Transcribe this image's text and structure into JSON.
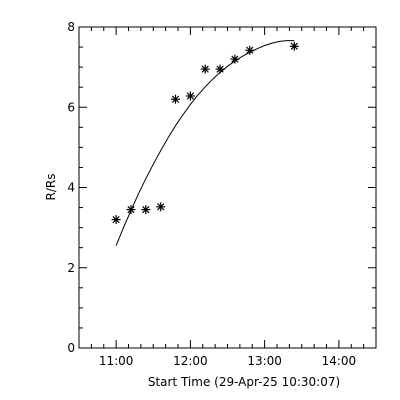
{
  "chart_data": {
    "type": "scatter",
    "xlabel": "Start Time (29-Apr-25 10:30:07)",
    "ylabel": "R/Rs",
    "xlim": [
      "10:30",
      "14:30"
    ],
    "ylim": [
      0,
      8
    ],
    "x_ticks": [
      "11:00",
      "12:00",
      "13:00",
      "14:00"
    ],
    "y_ticks": [
      0,
      2,
      4,
      6,
      8
    ],
    "grid": false,
    "series": [
      {
        "marker": "asterisk",
        "points": [
          {
            "x": "11:00",
            "y": 3.2
          },
          {
            "x": "11:12",
            "y": 3.45
          },
          {
            "x": "11:24",
            "y": 3.45
          },
          {
            "x": "11:36",
            "y": 3.52
          },
          {
            "x": "11:48",
            "y": 6.2
          },
          {
            "x": "12:00",
            "y": 6.28
          },
          {
            "x": "12:12",
            "y": 6.95
          },
          {
            "x": "12:24",
            "y": 6.95
          },
          {
            "x": "12:36",
            "y": 7.2
          },
          {
            "x": "12:48",
            "y": 7.42
          },
          {
            "x": "13:24",
            "y": 7.52
          }
        ]
      },
      {
        "style": "line",
        "points": [
          {
            "x": "11:00",
            "y": 2.55
          },
          {
            "x": "11:06",
            "y": 3.0
          },
          {
            "x": "11:12",
            "y": 3.43
          },
          {
            "x": "11:18",
            "y": 3.84
          },
          {
            "x": "11:24",
            "y": 4.22
          },
          {
            "x": "11:30",
            "y": 4.58
          },
          {
            "x": "11:36",
            "y": 4.92
          },
          {
            "x": "11:42",
            "y": 5.24
          },
          {
            "x": "11:48",
            "y": 5.54
          },
          {
            "x": "11:54",
            "y": 5.81
          },
          {
            "x": "12:00",
            "y": 6.07
          },
          {
            "x": "12:06",
            "y": 6.3
          },
          {
            "x": "12:12",
            "y": 6.51
          },
          {
            "x": "12:18",
            "y": 6.7
          },
          {
            "x": "12:24",
            "y": 6.87
          },
          {
            "x": "12:30",
            "y": 7.02
          },
          {
            "x": "12:36",
            "y": 7.15
          },
          {
            "x": "12:42",
            "y": 7.27
          },
          {
            "x": "12:48",
            "y": 7.37
          },
          {
            "x": "12:54",
            "y": 7.46
          },
          {
            "x": "13:00",
            "y": 7.54
          },
          {
            "x": "13:06",
            "y": 7.6
          },
          {
            "x": "13:12",
            "y": 7.64
          },
          {
            "x": "13:18",
            "y": 7.66
          },
          {
            "x": "13:24",
            "y": 7.66
          }
        ]
      }
    ]
  }
}
